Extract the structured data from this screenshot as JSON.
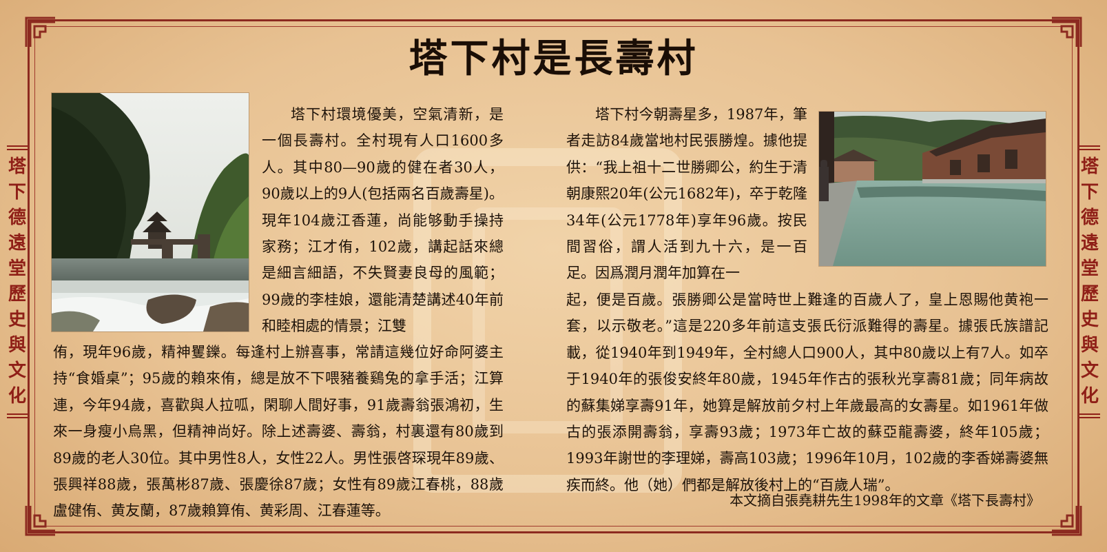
{
  "title": "塔下村是長壽村",
  "side_label_left": "塔下德遠堂歷史與文化",
  "side_label_right": "塔下德遠堂歷史與文化",
  "left_column": {
    "paragraph_top": "塔下村環境優美，空氣清新，是一個長壽村。全村現有人口1600多人。其中80—90歲的健在者30人，90歲以上的9人(包括兩名百歲壽星)。現年104歲江香蓮，尚能够動手操持家務；江才侑，102歲，講起話來總是細言細語，不失賢妻良母的風範；99歲的李桂娘，還能清楚講述40年前和睦相處的情景；江雙",
    "paragraph_bottom": "侑，現年96歲，精神矍鑠。每逢村上辦喜事，常請這幾位好命阿婆主持“食婚桌”；95歲的賴來侑，總是放不下喂豬養鷄兔的拿手活；江算連，今年94歲，喜歡與人拉呱，閑聊人間好事，91歲壽翁張鴻初，生來一身瘦小烏黑，但精神尚好。除上述壽婆、壽翁，村裏還有80歲到89歲的老人30位。其中男性8人，女性22人。男性張啓琛現年89歲、張興祥88歲，張萬彬87歲、張慶徐87歲；女性有89歲江春桃，88歲盧健侑、黄友蘭，87歲賴算侑、黄彩周、江春蓮等。"
  },
  "right_column": {
    "paragraph_top": "塔下村今朝壽星多，1987年，筆者走訪84歲當地村民張勝煌。據他提供：“我上祖十二世勝卿公，約生于清朝康熙20年(公元1682年)，卒于乾隆34年(公元1778年)享年96歲。按民間習俗，謂人活到九十六，是一百足。因爲潤月潤年加算在一",
    "paragraph_bottom": "起，便是百歲。張勝卿公是當時世上難逢的百歲人了，皇上恩賜他黄袍一套，以示敬老。”這是220多年前這支張氏衍派難得的壽星。據張氏族譜記載，從1940年到1949年，全村總人口900人，其中80歲以上有7人。如卒于1940年的張俊安終年80歲，1945年作古的張秋光享壽81歲；同年病故的蘇集娣享壽91年，她算是解放前夕村上年歲最高的女壽星。如1961年做古的張添開壽翁，享壽93歲；1973年亡故的蘇亞龍壽婆，終年105歲；1993年謝世的李理娣，壽高103歲；1996年10月，102歲的李香娣壽婆無疾而終。他（她）們都是解放後村上的“百歲人瑞”。"
  },
  "source_note": "本文摘自張堯耕先生1998年的文章《塔下長壽村》",
  "colors": {
    "background": "#e8c293",
    "border": "#8c2a20",
    "side_label": "#8f1f17",
    "text": "#1e130a"
  }
}
